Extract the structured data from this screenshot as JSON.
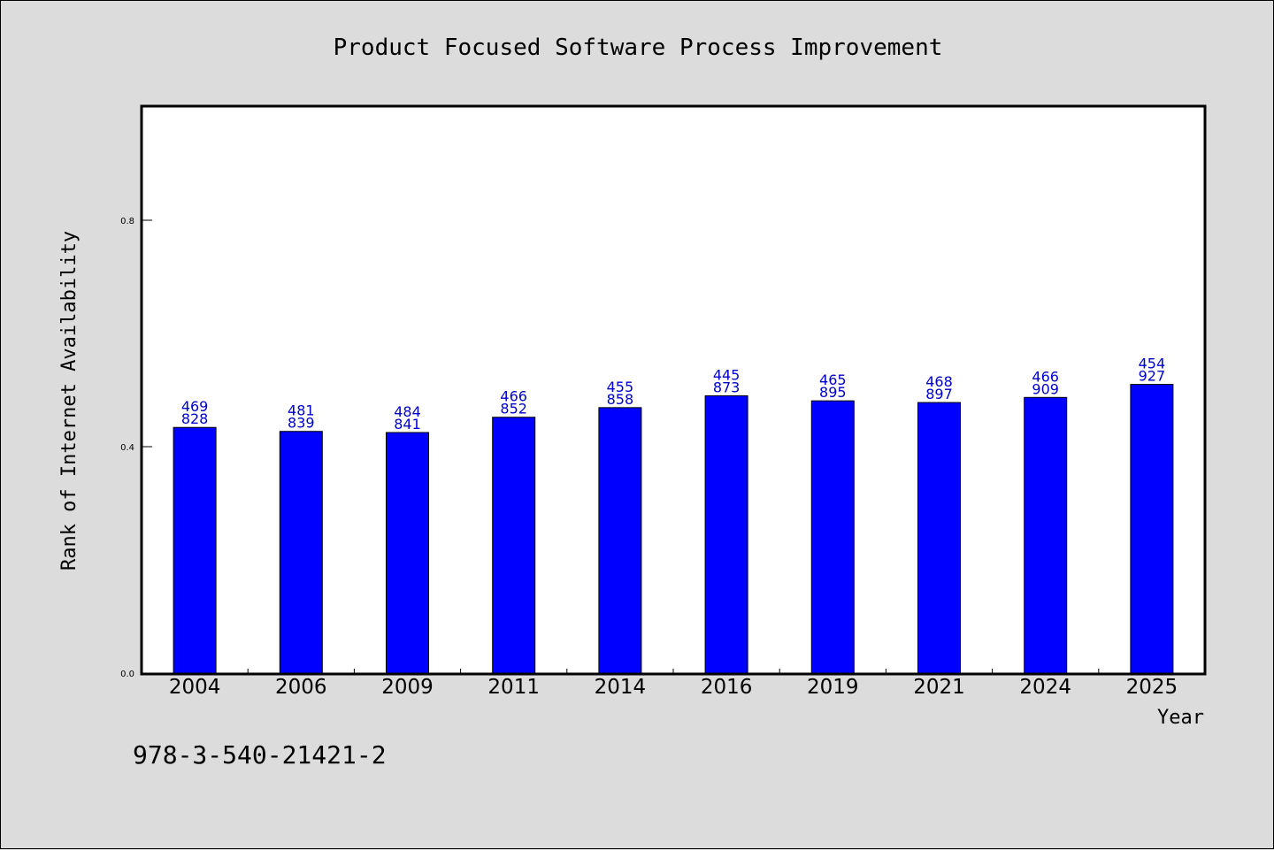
{
  "chart_data": {
    "type": "bar",
    "title": "Product Focused Software Process Improvement",
    "xlabel": "Year",
    "ylabel": "Rank of Internet Availability",
    "categories": [
      "2004",
      "2006",
      "2009",
      "2011",
      "2014",
      "2016",
      "2019",
      "2021",
      "2024",
      "2025"
    ],
    "values": [
      0.434,
      0.427,
      0.425,
      0.452,
      0.469,
      0.49,
      0.481,
      0.478,
      0.487,
      0.51
    ],
    "data_labels": [
      [
        "469",
        "828"
      ],
      [
        "481",
        "839"
      ],
      [
        "484",
        "841"
      ],
      [
        "466",
        "852"
      ],
      [
        "455",
        "858"
      ],
      [
        "445",
        "873"
      ],
      [
        "465",
        "895"
      ],
      [
        "468",
        "897"
      ],
      [
        "466",
        "909"
      ],
      [
        "454",
        "927"
      ]
    ],
    "ylim": [
      0,
      1.0
    ],
    "yticks": [
      0.0,
      0.4,
      0.8
    ],
    "ytick_labels": [
      "0.0",
      "0.4",
      "0.8"
    ],
    "grid": false,
    "bar_color": "#0000ff",
    "label_color": "#0000cc",
    "background_color": "#dcdcdc",
    "plot_background": "#ffffff"
  },
  "footer": {
    "isbn": "978-3-540-21421-2"
  }
}
